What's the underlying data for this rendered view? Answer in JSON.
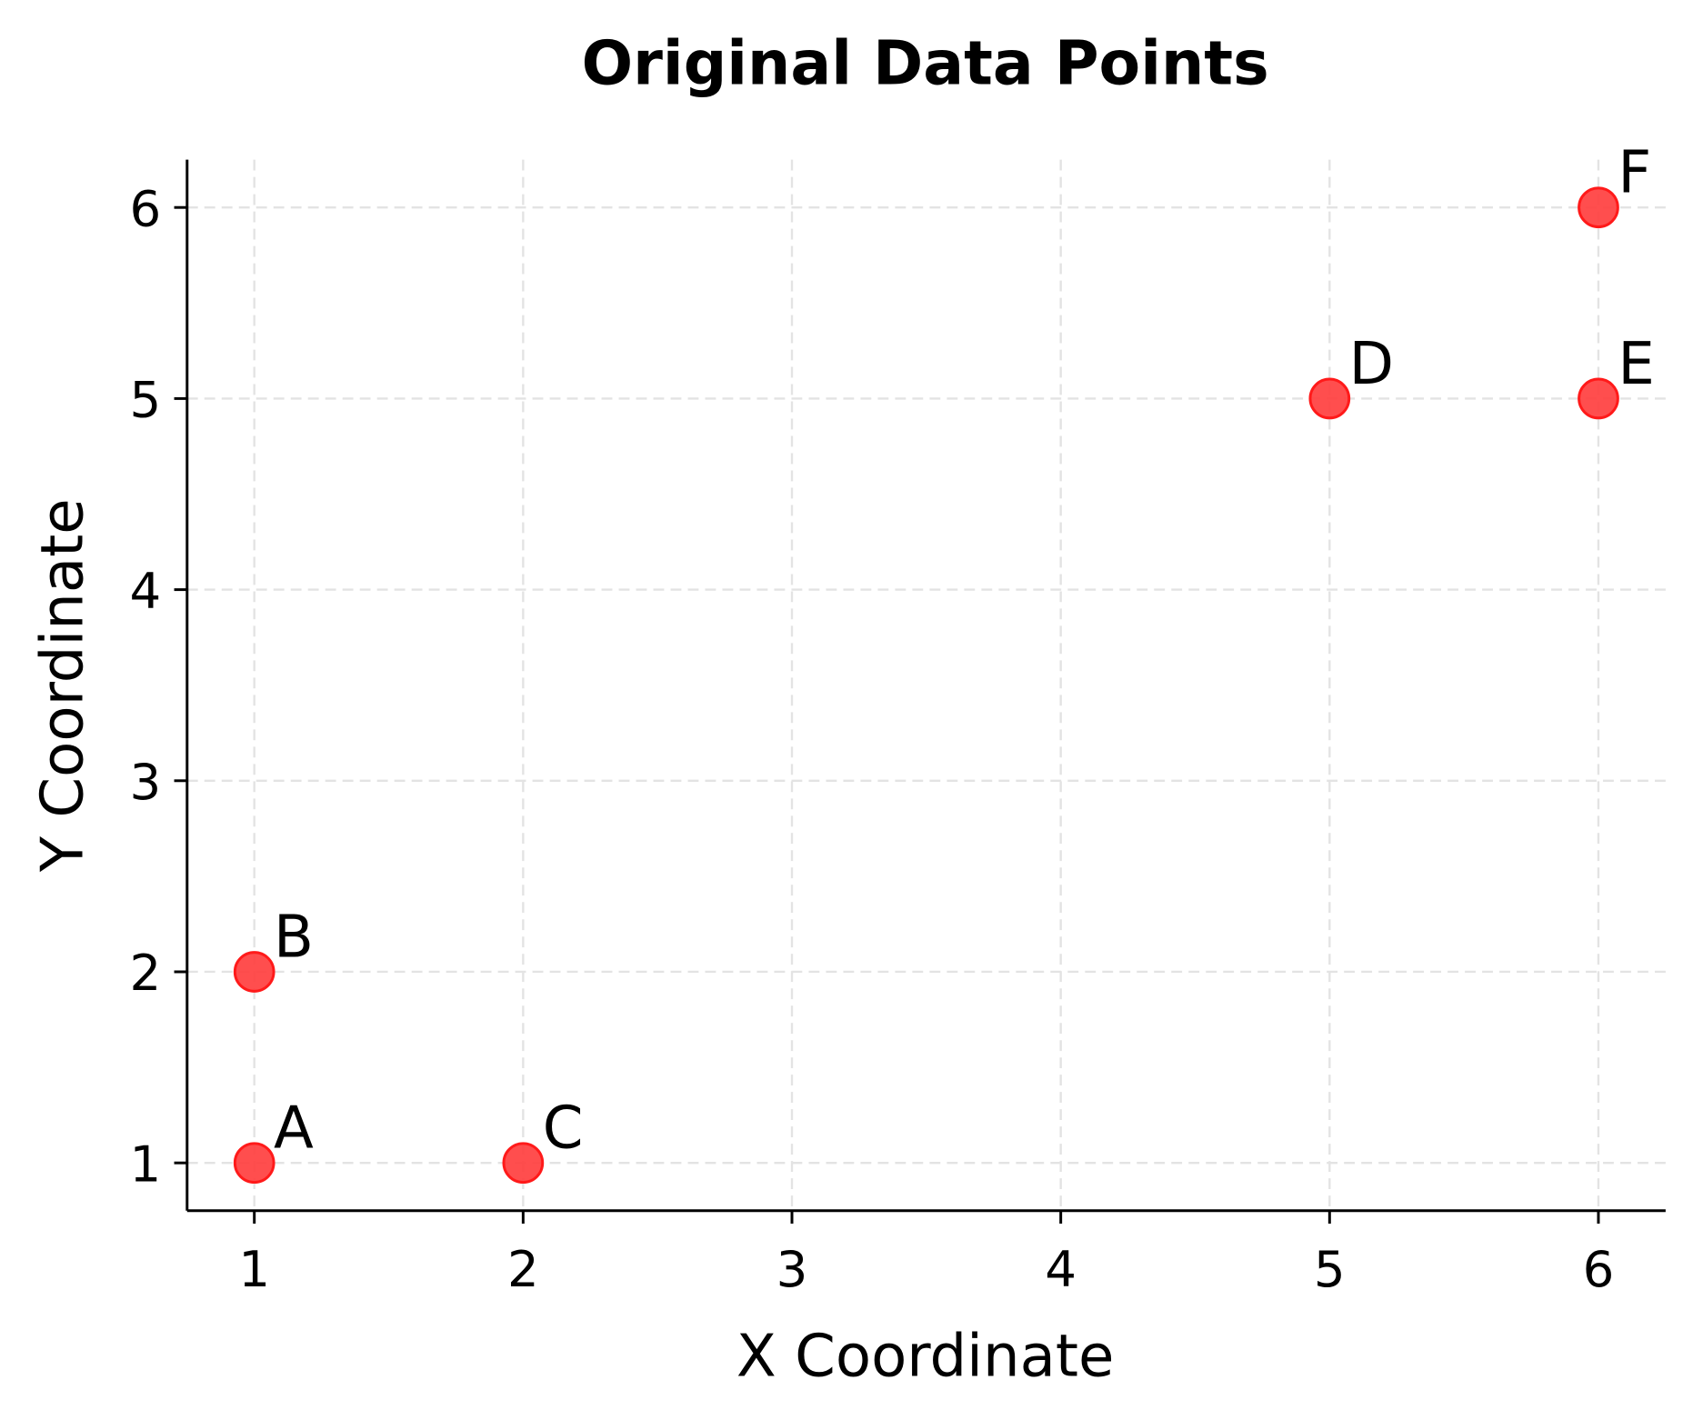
{
  "chart_data": {
    "type": "scatter",
    "title": "Original Data Points",
    "xlabel": "X Coordinate",
    "ylabel": "Y Coordinate",
    "xlim": [
      0.75,
      6.25
    ],
    "ylim": [
      0.75,
      6.25
    ],
    "xticks": [
      "1",
      "2",
      "3",
      "4",
      "5",
      "6"
    ],
    "yticks": [
      "1",
      "2",
      "3",
      "4",
      "5",
      "6"
    ],
    "grid": true,
    "grid_style": "dashed",
    "legend": null,
    "marker_color": "#ff3b3b",
    "marker_edge_color": "#ff1a1a",
    "points": [
      {
        "label": "A",
        "x": 1,
        "y": 1
      },
      {
        "label": "B",
        "x": 1,
        "y": 2
      },
      {
        "label": "C",
        "x": 2,
        "y": 1
      },
      {
        "label": "D",
        "x": 5,
        "y": 5
      },
      {
        "label": "E",
        "x": 6,
        "y": 5
      },
      {
        "label": "F",
        "x": 6,
        "y": 6
      }
    ]
  }
}
